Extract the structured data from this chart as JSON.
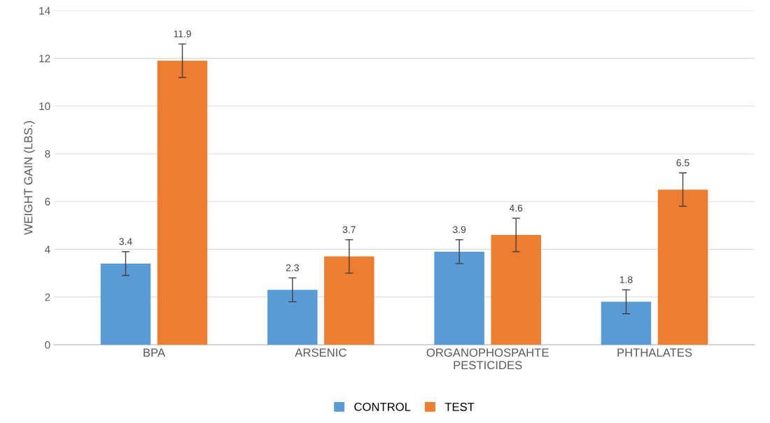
{
  "chart_data": {
    "type": "bar",
    "ylabel": "WEIGHT GAIN (LBS.)",
    "categories": [
      "BPA",
      "ARSENIC",
      "ORGANOPHOSPAHTE\nPESTICIDES",
      "PHTHALATES"
    ],
    "series": [
      {
        "name": "CONTROL",
        "color": "#5b9bd5",
        "values": [
          3.4,
          2.3,
          3.9,
          1.8
        ],
        "errors": [
          0.5,
          0.5,
          0.5,
          0.5
        ]
      },
      {
        "name": "TEST",
        "color": "#ed7d31",
        "values": [
          11.9,
          3.7,
          4.6,
          6.5
        ],
        "errors": [
          0.7,
          0.7,
          0.7,
          0.7
        ]
      }
    ],
    "ylim": [
      0,
      14
    ],
    "yticks": [
      0,
      2,
      4,
      6,
      8,
      10,
      12,
      14
    ],
    "grid": "y",
    "legend": "bottom",
    "data_labels": true
  }
}
